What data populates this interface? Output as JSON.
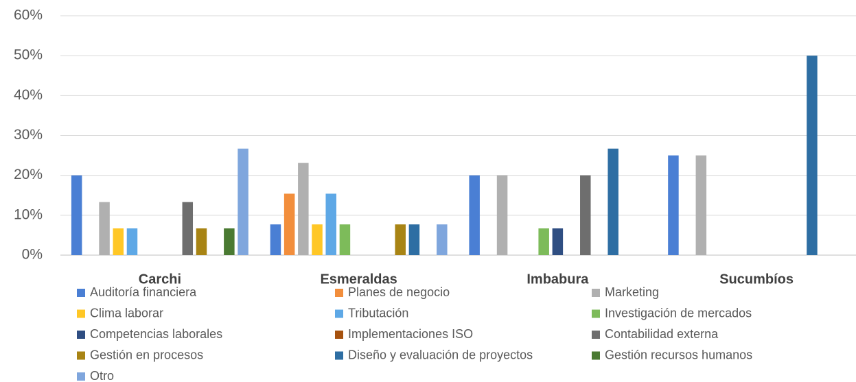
{
  "chart_data": {
    "type": "bar",
    "categories": [
      "Carchi",
      "Esmeraldas",
      "Imbabura",
      "Sucumbíos"
    ],
    "series": [
      {
        "name": "Auditoría financiera",
        "color": "#4a7fd4",
        "values": [
          20,
          7.7,
          20,
          25
        ]
      },
      {
        "name": "Planes de negocio",
        "color": "#f28e3c",
        "values": [
          0,
          15.4,
          0,
          0
        ]
      },
      {
        "name": "Marketing",
        "color": "#b0b0b0",
        "values": [
          13.3,
          23.1,
          20,
          25
        ]
      },
      {
        "name": "Clima laborar",
        "color": "#ffc726",
        "values": [
          6.7,
          7.7,
          0,
          0
        ]
      },
      {
        "name": "Tributación",
        "color": "#5ea8e6",
        "values": [
          6.7,
          15.4,
          0,
          0
        ]
      },
      {
        "name": "Investigación de mercados",
        "color": "#7dbb5a",
        "values": [
          0,
          7.7,
          6.7,
          0
        ]
      },
      {
        "name": "Competencias laborales",
        "color": "#2f4e82",
        "values": [
          0,
          0,
          6.7,
          0
        ]
      },
      {
        "name": "Implementaciones ISO",
        "color": "#a6520f",
        "values": [
          0,
          0,
          0,
          0
        ]
      },
      {
        "name": "Contabilidad externa",
        "color": "#6e6e6e",
        "values": [
          13.3,
          0,
          20,
          0
        ]
      },
      {
        "name": "Gestión en procesos",
        "color": "#a88414",
        "values": [
          6.7,
          7.7,
          0,
          0
        ]
      },
      {
        "name": "Diseño y evaluación de proyectos",
        "color": "#2e6ea3",
        "values": [
          0,
          7.7,
          26.7,
          50
        ]
      },
      {
        "name": "Gestión recursos humanos",
        "color": "#4a7a32",
        "values": [
          6.7,
          0,
          0,
          0
        ]
      },
      {
        "name": "Otro",
        "color": "#7fa6dd",
        "values": [
          26.7,
          7.7,
          0,
          0
        ]
      }
    ],
    "ylim": [
      0,
      60
    ],
    "yticks": [
      {
        "value": 0,
        "label": "0%"
      },
      {
        "value": 10,
        "label": "10%"
      },
      {
        "value": 20,
        "label": "20%"
      },
      {
        "value": 30,
        "label": "30%"
      },
      {
        "value": 40,
        "label": "40%"
      },
      {
        "value": 50,
        "label": "50%"
      },
      {
        "value": 60,
        "label": "60%"
      }
    ],
    "grid": true,
    "legend": "bottom"
  }
}
